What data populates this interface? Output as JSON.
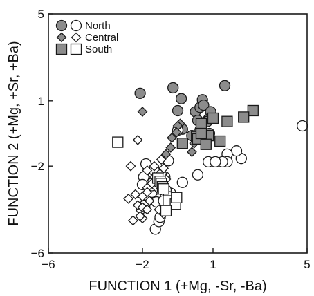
{
  "chart_data": {
    "type": "scatter",
    "title": "",
    "xlabel": "FUNCTION 1 (+Mg, -Sr, -Ba)",
    "ylabel": "FUNCTION 2 (+Mg, +Sr, +Ba)",
    "xlim": [
      -6,
      5
    ],
    "ylim": [
      -6,
      5
    ],
    "xticks": [
      -6,
      -2,
      1,
      5
    ],
    "yticks": [
      5,
      1,
      -2,
      -6
    ],
    "xtick_labels": [
      "−6",
      "−2",
      "1",
      "5"
    ],
    "ytick_labels": [
      "5",
      "1",
      "−2",
      "−6"
    ],
    "grid": false,
    "legend_position": "top-left",
    "colors": {
      "filled": "#8c8c8c",
      "open": "#ffffff",
      "stroke": "#1a1a1a"
    },
    "legend": [
      {
        "label": "North",
        "shape": "circle"
      },
      {
        "label": "Central",
        "shape": "diamond"
      },
      {
        "label": "South",
        "shape": "square"
      }
    ],
    "series": [
      {
        "name": "North",
        "shape": "circle",
        "fill": "filled",
        "x": [
          -2.1,
          -0.7,
          -0.35,
          -0.5,
          0.55,
          0.25,
          0.45,
          0.35,
          0.6,
          0.8,
          0.45,
          0.9,
          0.75,
          1.5,
          0.1,
          0.85,
          -0.3,
          0.7
        ],
        "y": [
          1.35,
          1.6,
          1.1,
          0.55,
          1.05,
          0.5,
          0.7,
          0.1,
          0.8,
          0.15,
          -0.35,
          0.5,
          0.05,
          1.7,
          -0.6,
          -0.5,
          -0.3,
          -0.65
        ]
      },
      {
        "name": "North",
        "shape": "circle",
        "fill": "open",
        "x": [
          4.8,
          2.2,
          2.0,
          1.6,
          1.6,
          1.4,
          0.8,
          1.1,
          0.35,
          -0.3,
          -0.8,
          -1.1,
          -1.3,
          -1.45,
          -1.5,
          -1.6,
          -1.75,
          -1.85,
          -1.9,
          -2.05,
          -1.95,
          -2.0,
          -1.6,
          -1.45,
          -1.3,
          -1.25,
          -1.4,
          -0.5,
          -1.05,
          -1.1,
          -1.0,
          -0.9,
          -1.6,
          -0.9,
          -1.5,
          -1.2,
          -1.3
        ],
        "y": [
          -0.15,
          -1.65,
          -1.3,
          -1.45,
          -1.8,
          -1.8,
          -1.8,
          -1.8,
          -2.4,
          -2.75,
          -3.25,
          -2.5,
          -3.1,
          -3.3,
          -3.1,
          -3.2,
          -2.1,
          -1.9,
          -3.8,
          -3.95,
          -2.5,
          -2.85,
          -2.8,
          -4.9,
          -4.55,
          -4.35,
          -3.65,
          -0.35,
          -2.5,
          -3.6,
          -3.1,
          -3.4,
          -2.9,
          -1.75,
          -2.2,
          -2.4,
          -2.95
        ]
      },
      {
        "name": "Central",
        "shape": "diamond",
        "fill": "filled",
        "x": [
          -2.0,
          -0.4,
          -0.5,
          -0.55,
          -0.75,
          -0.8,
          -1.0,
          0.2,
          0.1
        ],
        "y": [
          0.5,
          -0.05,
          -0.15,
          -0.45,
          -0.7,
          -1.15,
          -1.45,
          -0.95,
          -1.35
        ]
      },
      {
        "name": "Central",
        "shape": "diamond",
        "fill": "open",
        "x": [
          -2.2,
          -2.5,
          -1.8,
          -1.5,
          -1.2,
          -1.1,
          -1.5,
          -1.6,
          -1.8,
          -2.3,
          -2.0,
          -1.8,
          -1.4,
          -1.7,
          -2.6,
          -2.2,
          -2.0,
          -1.8,
          -1.3,
          -1.1,
          -2.4,
          -2.0,
          -2.1,
          -1.0
        ],
        "y": [
          -0.8,
          -2.0,
          -2.2,
          -2.0,
          -1.7,
          -2.1,
          -2.5,
          -2.8,
          -3.0,
          -3.3,
          -3.4,
          -3.2,
          -3.0,
          -3.6,
          -3.5,
          -3.8,
          -3.9,
          -4.0,
          -4.0,
          -4.2,
          -4.5,
          -4.4,
          -4.3,
          -2.6
        ]
      },
      {
        "name": "South",
        "shape": "square",
        "fill": "filled",
        "x": [
          2.7,
          2.3,
          1.6,
          1.0,
          0.5,
          0.8,
          0.3,
          0.35,
          0.7,
          1.3,
          -0.3,
          0.5
        ],
        "y": [
          0.55,
          0.25,
          0.05,
          0.2,
          -0.05,
          -0.6,
          -0.65,
          -0.75,
          -1.0,
          -0.85,
          -0.95,
          -0.5
        ]
      },
      {
        "name": "South",
        "shape": "square",
        "fill": "open",
        "x": [
          -3.05,
          -1.35,
          -1.25,
          -1.2,
          -1.15,
          -1.1,
          -0.9,
          -0.6,
          -1.0,
          -0.55
        ],
        "y": [
          -0.9,
          -2.55,
          -2.7,
          -2.8,
          -2.95,
          -3.05,
          -3.6,
          -3.75,
          -4.05,
          -3.45
        ]
      }
    ]
  }
}
